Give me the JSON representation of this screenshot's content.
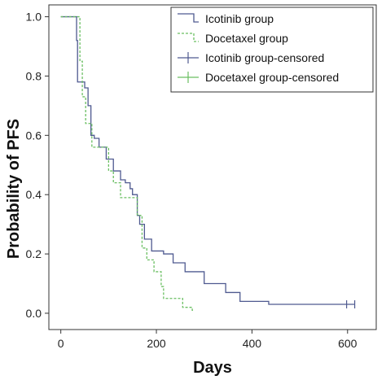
{
  "chart_data": {
    "type": "line",
    "title": "",
    "xlabel": "Days",
    "ylabel": "Probability of PFS",
    "xlim": [
      -25,
      660
    ],
    "ylim": [
      -0.055,
      1.04
    ],
    "xticks": [
      0,
      200,
      400,
      600
    ],
    "yticks": [
      0.0,
      0.2,
      0.4,
      0.6,
      0.8,
      1.0
    ],
    "ytick_labels": [
      "0.0",
      "0.2",
      "0.4",
      "0.6",
      "0.8",
      "1.0"
    ],
    "grid": false,
    "legend_position": "top-right",
    "step": true,
    "series": [
      {
        "name": "Icotinib group",
        "color": "#4f5a90",
        "dash": "solid",
        "x": [
          0,
          28,
          33,
          35,
          42,
          50,
          57,
          63,
          70,
          80,
          95,
          100,
          110,
          125,
          135,
          145,
          150,
          160,
          165,
          175,
          190,
          215,
          235,
          260,
          300,
          345,
          375,
          435,
          615
        ],
        "y": [
          1.0,
          1.0,
          0.92,
          0.78,
          0.78,
          0.76,
          0.7,
          0.6,
          0.59,
          0.56,
          0.52,
          0.52,
          0.48,
          0.45,
          0.44,
          0.42,
          0.4,
          0.33,
          0.3,
          0.25,
          0.21,
          0.2,
          0.17,
          0.14,
          0.1,
          0.07,
          0.04,
          0.03,
          0.03
        ]
      },
      {
        "name": "Docetaxel group",
        "color": "#6abf62",
        "dash": "dashed",
        "x": [
          0,
          38,
          40,
          45,
          52,
          57,
          65,
          80,
          100,
          110,
          125,
          135,
          160,
          170,
          180,
          195,
          210,
          215,
          255,
          275,
          278
        ],
        "y": [
          1.0,
          1.0,
          0.85,
          0.73,
          0.64,
          0.64,
          0.56,
          0.56,
          0.48,
          0.44,
          0.39,
          0.39,
          0.33,
          0.22,
          0.18,
          0.14,
          0.09,
          0.05,
          0.02,
          0.01,
          0.01
        ]
      }
    ],
    "censored": [
      {
        "name": "Icotinib group-censored",
        "color": "#4f5a90",
        "x": [
          598,
          615
        ],
        "y": [
          0.03,
          0.03
        ]
      },
      {
        "name": "Docetaxel group-censored",
        "color": "#6abf62",
        "x": [],
        "y": []
      }
    ]
  }
}
